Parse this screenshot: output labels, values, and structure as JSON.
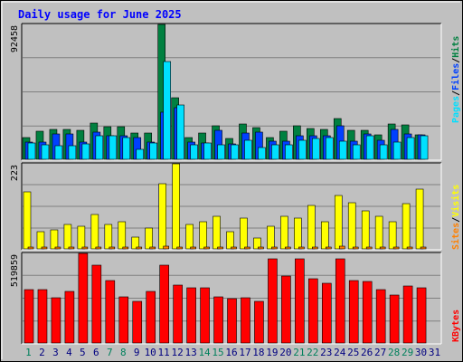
{
  "colors": {
    "background": "#C0C0C0",
    "plot_bg": "#C0C0C0",
    "grid": "#808080",
    "title": "#0000FF",
    "hits": "#008040",
    "files": "#0040FF",
    "pages": "#00E0FF",
    "visits": "#FFFF00",
    "sites": "#FF8000",
    "kbytes": "#FF0000",
    "day_normal": "#000080",
    "day_weekend": "#00805C"
  },
  "chart_data": [
    {
      "type": "bar",
      "title": "Daily usage for June 2025",
      "panel": "top",
      "ylabel_parts": [
        "Pages",
        "Files",
        "Hits"
      ],
      "ylabel_separator": " / ",
      "ymax_label": "92458",
      "ylim": [
        0,
        92458
      ],
      "grid": true,
      "categories": [
        "1",
        "2",
        "3",
        "4",
        "5",
        "6",
        "7",
        "8",
        "9",
        "10",
        "11",
        "12",
        "13",
        "14",
        "15",
        "16",
        "17",
        "18",
        "19",
        "20",
        "21",
        "22",
        "23",
        "24",
        "25",
        "26",
        "27",
        "28",
        "29",
        "30",
        "31"
      ],
      "series": [
        {
          "name": "Hits",
          "values": [
            15000,
            19500,
            20500,
            20500,
            20000,
            24800,
            22500,
            22500,
            17800,
            17800,
            92458,
            42000,
            14800,
            18200,
            23000,
            14300,
            24500,
            21500,
            15000,
            19000,
            23000,
            21000,
            20500,
            27800,
            20000,
            19800,
            16800,
            24500,
            23500,
            16800,
            0
          ]
        },
        {
          "name": "Files",
          "values": [
            11700,
            11700,
            17200,
            17200,
            11700,
            18500,
            16200,
            16200,
            15000,
            11700,
            32500,
            35500,
            11700,
            10900,
            19800,
            10300,
            17800,
            18500,
            12200,
            12700,
            16300,
            16300,
            16200,
            23200,
            12200,
            17200,
            13200,
            20500,
            17200,
            16500,
            0
          ]
        },
        {
          "name": "Pages",
          "values": [
            11000,
            10000,
            9500,
            9500,
            10500,
            16000,
            16000,
            15000,
            7000,
            11000,
            67000,
            37000,
            10000,
            11000,
            10000,
            10000,
            13000,
            8000,
            10000,
            10000,
            13000,
            14000,
            15000,
            12500,
            10000,
            16000,
            10000,
            12000,
            15000,
            16000,
            0
          ]
        }
      ]
    },
    {
      "type": "bar",
      "panel": "middle",
      "ylabel_parts": [
        "Sites",
        "Visits"
      ],
      "ylabel_separator": " / ",
      "ymax_label": "223",
      "ylim": [
        0,
        223
      ],
      "grid": true,
      "series": [
        {
          "name": "Visits",
          "values": [
            150,
            45,
            50,
            65,
            60,
            90,
            65,
            72,
            30,
            55,
            171,
            223,
            63,
            72,
            86,
            45,
            80,
            28,
            60,
            85,
            80,
            115,
            72,
            140,
            120,
            100,
            85,
            70,
            118,
            157,
            0
          ]
        },
        {
          "name": "Sites",
          "values": [
            5,
            4,
            4,
            4,
            4,
            5,
            4,
            4,
            4,
            4,
            6,
            5,
            4,
            4,
            5,
            4,
            4,
            4,
            4,
            4,
            5,
            5,
            4,
            6,
            5,
            5,
            4,
            4,
            5,
            5,
            0
          ]
        }
      ]
    },
    {
      "type": "bar",
      "panel": "bottom",
      "ylabel_parts": [
        "KBytes"
      ],
      "ylabel_separator": "",
      "ymax_label": "519859",
      "ylim": [
        0,
        519859
      ],
      "grid": true,
      "series": [
        {
          "name": "KBytes",
          "values": [
            310000,
            310000,
            260000,
            300000,
            519859,
            450000,
            360000,
            270000,
            240000,
            300000,
            450000,
            335000,
            320000,
            320000,
            270000,
            255000,
            260000,
            240000,
            490000,
            390000,
            490000,
            375000,
            345000,
            490000,
            360000,
            355000,
            310000,
            280000,
            330000,
            320000,
            0
          ]
        }
      ]
    }
  ]
}
